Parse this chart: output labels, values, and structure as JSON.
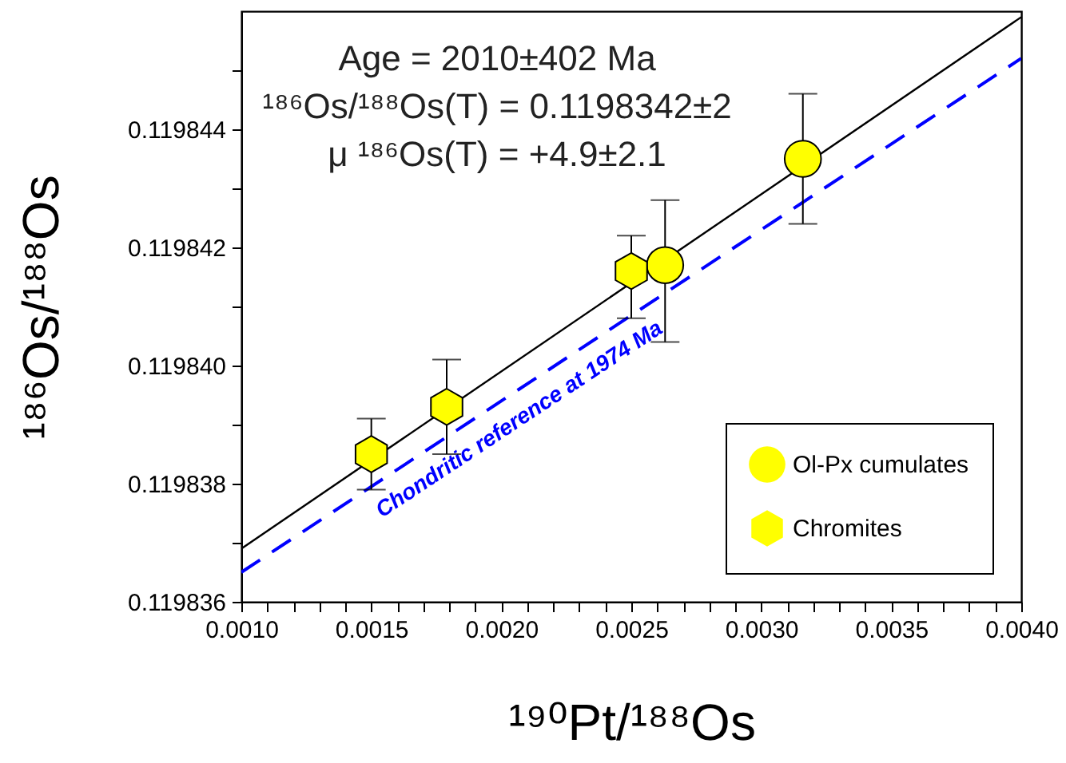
{
  "chart_data": {
    "type": "scatter",
    "xlabel": "¹⁹⁰Pt/¹⁸⁸Os",
    "ylabel": "¹⁸⁶Os/¹⁸⁸Os",
    "xlim": [
      0.001,
      0.004
    ],
    "ylim": [
      0.119836,
      0.119846
    ],
    "xticks": [
      {
        "value": 0.001,
        "label": "0.0010"
      },
      {
        "value": 0.0011,
        "label": null
      },
      {
        "value": 0.0012,
        "label": null
      },
      {
        "value": 0.0013,
        "label": null
      },
      {
        "value": 0.0014,
        "label": null
      },
      {
        "value": 0.0015,
        "label": "0.0015"
      },
      {
        "value": 0.0016,
        "label": null
      },
      {
        "value": 0.0017,
        "label": null
      },
      {
        "value": 0.0018,
        "label": null
      },
      {
        "value": 0.0019,
        "label": null
      },
      {
        "value": 0.002,
        "label": "0.0020"
      },
      {
        "value": 0.0021,
        "label": null
      },
      {
        "value": 0.0022,
        "label": null
      },
      {
        "value": 0.0023,
        "label": null
      },
      {
        "value": 0.0024,
        "label": null
      },
      {
        "value": 0.0025,
        "label": "0.0025"
      },
      {
        "value": 0.0026,
        "label": null
      },
      {
        "value": 0.0027,
        "label": null
      },
      {
        "value": 0.0028,
        "label": null
      },
      {
        "value": 0.0029,
        "label": null
      },
      {
        "value": 0.003,
        "label": "0.0030"
      },
      {
        "value": 0.0031,
        "label": null
      },
      {
        "value": 0.0032,
        "label": null
      },
      {
        "value": 0.0033,
        "label": null
      },
      {
        "value": 0.0034,
        "label": null
      },
      {
        "value": 0.0035,
        "label": "0.0035"
      },
      {
        "value": 0.0036,
        "label": null
      },
      {
        "value": 0.0037,
        "label": null
      },
      {
        "value": 0.0038,
        "label": null
      },
      {
        "value": 0.0039,
        "label": null
      },
      {
        "value": 0.004,
        "label": "0.0040"
      }
    ],
    "yticks": [
      0.119836,
      {
        "value": 0.119837,
        "label": null
      },
      0.119838,
      {
        "value": 0.119839,
        "label": null
      },
      {
        "value": 0.11984,
        "label": "0.119840"
      },
      {
        "value": 0.119841,
        "label": null
      },
      0.119842,
      {
        "value": 0.119843,
        "label": null
      },
      0.119844,
      {
        "value": 0.119845,
        "label": null
      }
    ],
    "annotations": [
      "Age = 2010±402 Ma",
      "¹⁸⁶Os/¹⁸⁸Os(T) = 0.1198342±2",
      "μ ¹⁸⁶Os(T) = +4.9±2.1"
    ],
    "legend": "bottom right",
    "grid": false,
    "series": [
      {
        "name": "Ol-Px cumulates",
        "marker": "circle",
        "color": "#ffff00",
        "x": [
          0.00263,
          0.00316
        ],
        "values": [
          0.1198417,
          0.1198435
        ],
        "errors": [
          [
            0.1198404,
            0.1198428
          ],
          [
            0.1198424,
            0.1198446
          ]
        ]
      },
      {
        "name": "Chromites",
        "color": "#ffff00",
        "x": [
          0.0015,
          0.00179,
          0.0025
        ],
        "values": [
          0.1198385,
          0.1198393,
          0.1198416
        ],
        "errors": [
          [
            0.1198379,
            0.1198391
          ],
          [
            0.1198385,
            0.1198401
          ],
          [
            0.1198408,
            0.1198422
          ]
        ]
      },
      {
        "type": "line",
        "color": "#000000",
        "line_style": "solid",
        "x": [
          0.001,
          0.004
        ],
        "values": [
          0.1198369,
          0.1198459
        ]
      },
      {
        "name": "Chondritic reference at 1974 Ma",
        "type": "line",
        "color": "#0000ff",
        "line_style": "dashed",
        "x": [
          0.001,
          0.004
        ],
        "values": [
          0.1198365,
          0.1198452
        ]
      }
    ]
  }
}
